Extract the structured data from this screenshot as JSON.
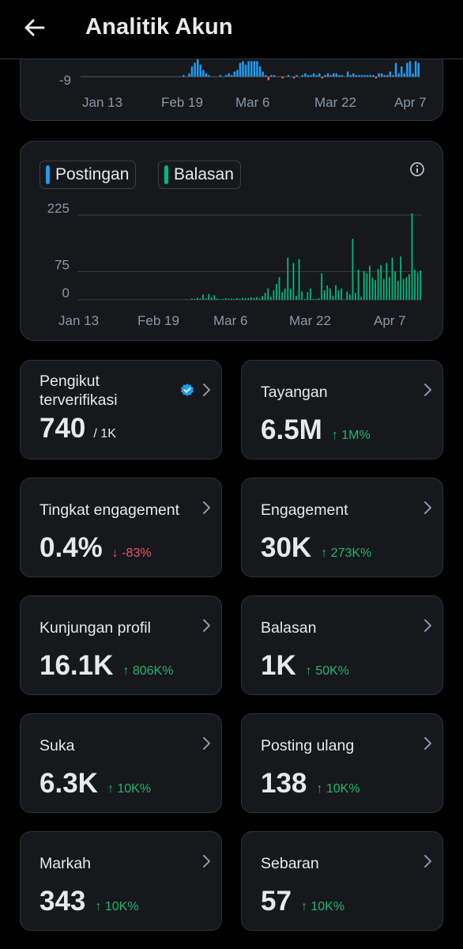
{
  "header": {
    "title": "Analitik Akun",
    "back_icon": "arrow-left-icon"
  },
  "top_chart": {
    "y_tick": "-9",
    "x_labels": [
      "Jan 13",
      "Feb 19",
      "Mar 6",
      "Mar 22",
      "Apr 7"
    ],
    "bar_color": "#1d9bf0",
    "neg_color": "#f0546c"
  },
  "activity_chart": {
    "legend": [
      {
        "label": "Postingan",
        "color": "#1d9bf0"
      },
      {
        "label": "Balasan",
        "color": "#00ba7c"
      }
    ],
    "y_ticks": [
      "225",
      "75",
      "0"
    ],
    "x_labels": [
      "Jan 13",
      "Feb 19",
      "Mar 6",
      "Mar 22",
      "Apr 7"
    ],
    "info_icon": "info-icon"
  },
  "chart_data": [
    {
      "type": "bar",
      "title": "",
      "x_labels": [
        "Jan 13",
        "Feb 19",
        "Mar 6",
        "Mar 22",
        "Apr 7"
      ],
      "series": [
        {
          "values": [
            0,
            0,
            0,
            0,
            0,
            0,
            0,
            0,
            0,
            0,
            0,
            0,
            0,
            0,
            0,
            0,
            0,
            0,
            0,
            0,
            0,
            0,
            0,
            0,
            0,
            0,
            0,
            0,
            0,
            0,
            0,
            0,
            0,
            0,
            0,
            0,
            1,
            0,
            2,
            6,
            8,
            10,
            7,
            4,
            2,
            1,
            0,
            0,
            0,
            1,
            0,
            1,
            2,
            1,
            3,
            4,
            8,
            9,
            7,
            9,
            9,
            9,
            9,
            6,
            3,
            1,
            -2,
            1,
            1,
            0,
            0,
            -1,
            0,
            1,
            0,
            -1,
            1,
            0,
            1,
            2,
            1,
            1,
            2,
            1,
            2,
            -1,
            1,
            2,
            1,
            2,
            2,
            1,
            1,
            0,
            3,
            1,
            2,
            1,
            1,
            1,
            1,
            1,
            1,
            1,
            -1,
            2,
            2,
            1,
            1,
            3,
            1,
            8,
            2,
            6,
            2,
            8,
            9,
            2,
            9,
            8
          ]
        }
      ]
    },
    {
      "type": "bar",
      "title": "",
      "x_labels": [
        "Jan 13",
        "Feb 19",
        "Mar 6",
        "Mar 22",
        "Apr 7"
      ],
      "y_ticks": [
        0,
        75,
        225
      ],
      "ylim": [
        0,
        240
      ],
      "series": [
        {
          "name": "Postingan",
          "values": [
            0,
            0,
            0,
            0,
            0,
            0,
            0,
            0,
            0,
            0,
            0,
            0,
            0,
            0,
            0,
            0,
            0,
            0,
            0,
            0,
            0,
            0,
            0,
            0,
            0,
            0,
            0,
            0,
            0,
            0,
            0,
            0,
            0,
            0,
            0,
            0,
            0,
            0,
            0,
            0,
            0,
            0,
            0,
            0,
            0,
            0,
            0,
            0,
            0,
            0,
            0,
            0,
            0,
            0,
            0,
            0,
            0,
            0,
            0,
            0,
            0,
            0,
            0,
            0,
            0,
            0,
            0,
            0,
            0,
            0,
            0,
            0,
            0,
            0,
            0,
            0,
            0,
            0,
            0,
            0,
            0,
            0,
            0,
            0,
            0,
            0,
            0,
            0,
            0,
            0,
            0,
            0,
            0,
            0,
            0,
            0,
            0,
            0,
            0,
            0,
            0,
            0,
            0,
            0,
            0,
            0,
            0,
            0,
            0,
            0,
            0,
            0,
            0,
            0,
            0,
            0,
            0,
            0,
            0,
            0,
            0,
            0,
            0,
            0,
            0,
            0,
            0,
            0,
            0,
            0,
            0,
            0,
            0,
            0,
            0,
            0,
            0,
            0,
            0,
            0,
            0
          ]
        },
        {
          "name": "Balasan",
          "values": [
            0,
            0,
            0,
            0,
            0,
            0,
            0,
            0,
            0,
            0,
            0,
            0,
            0,
            0,
            0,
            0,
            0,
            0,
            0,
            0,
            0,
            0,
            0,
            0,
            0,
            0,
            0,
            0,
            0,
            0,
            0,
            0,
            0,
            0,
            0,
            0,
            0,
            0,
            1,
            1,
            3,
            2,
            5,
            3,
            14,
            4,
            15,
            6,
            12,
            3,
            1,
            2,
            4,
            3,
            3,
            2,
            4,
            3,
            5,
            4,
            4,
            6,
            5,
            7,
            4,
            10,
            18,
            30,
            8,
            25,
            42,
            60,
            20,
            30,
            112,
            28,
            98,
            10,
            108,
            22,
            2,
            20,
            30,
            2,
            2,
            4,
            70,
            25,
            38,
            30,
            10,
            38,
            25,
            30,
            1,
            22,
            14,
            162,
            18,
            80,
            8,
            76,
            70,
            90,
            58,
            52,
            82,
            92,
            55,
            98,
            60,
            112,
            75,
            50,
            115,
            55,
            60,
            68,
            230,
            80,
            72,
            78
          ]
        }
      ]
    }
  ],
  "metrics": [
    {
      "label": "Pengikut terverifikasi",
      "value": "740",
      "sub": "/ 1K",
      "badge": "verified-badge-icon"
    },
    {
      "label": "Tayangan",
      "value": "6.5M",
      "change": "↑ 1M%",
      "dir": "up"
    },
    {
      "label": "Tingkat engagement",
      "value": "0.4%",
      "change": "↓ -83%",
      "dir": "down"
    },
    {
      "label": "Engagement",
      "value": "30K",
      "change": "↑ 273K%",
      "dir": "up"
    },
    {
      "label": "Kunjungan profil",
      "value": "16.1K",
      "change": "↑ 806K%",
      "dir": "up"
    },
    {
      "label": "Balasan",
      "value": "1K",
      "change": "↑ 50K%",
      "dir": "up"
    },
    {
      "label": "Suka",
      "value": "6.3K",
      "change": "↑ 10K%",
      "dir": "up"
    },
    {
      "label": "Posting ulang",
      "value": "138",
      "change": "↑ 10K%",
      "dir": "up"
    },
    {
      "label": "Markah",
      "value": "343",
      "change": "↑ 10K%",
      "dir": "up"
    },
    {
      "label": "Sebaran",
      "value": "57",
      "change": "↑ 10K%",
      "dir": "up"
    }
  ]
}
